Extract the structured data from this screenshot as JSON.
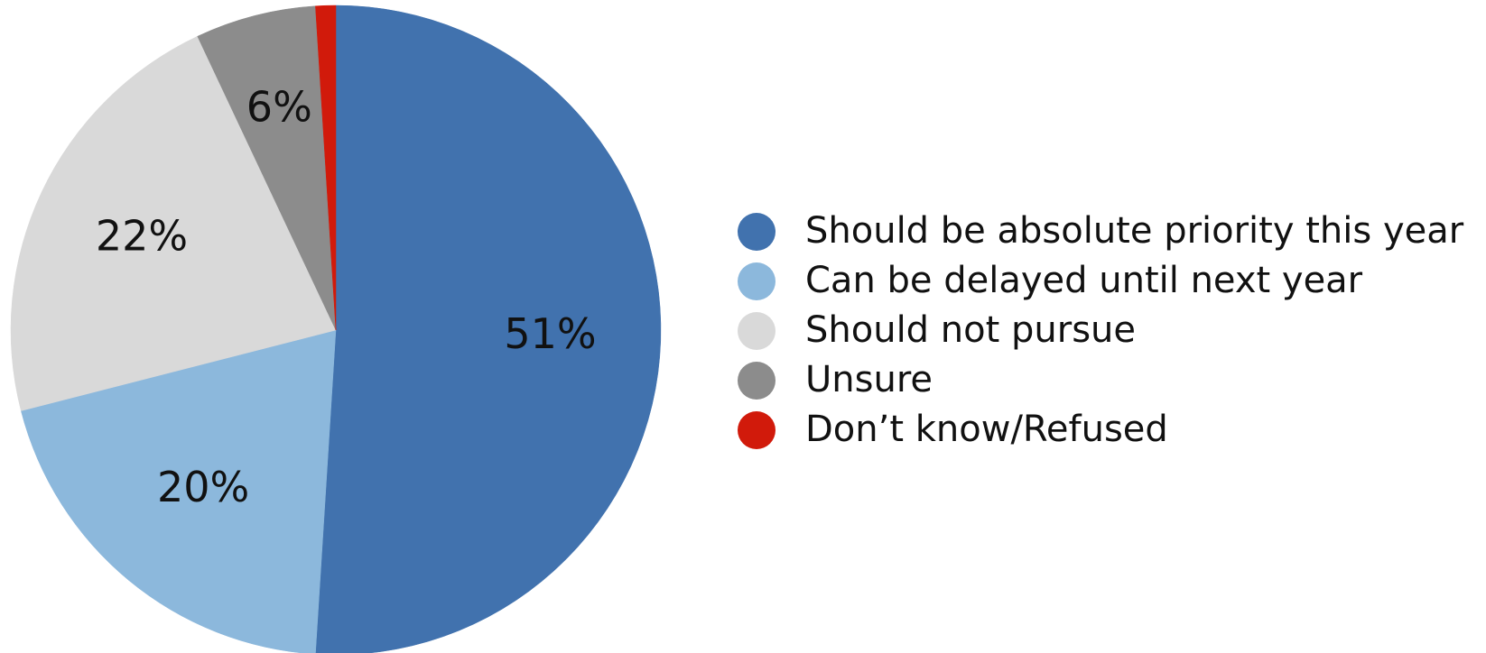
{
  "chart_data": {
    "type": "pie",
    "slices": [
      {
        "label": "Should be absolute priority this year",
        "value": 51,
        "value_label": "51%",
        "color": "#4172AE"
      },
      {
        "label": "Can be delayed until next year",
        "value": 20,
        "value_label": "20%",
        "color": "#8CB8DC"
      },
      {
        "label": "Should not pursue",
        "value": 22,
        "value_label": "22%",
        "color": "#D9D9D9"
      },
      {
        "label": "Unsure",
        "value": 6,
        "value_label": "6%",
        "color": "#8C8C8C"
      },
      {
        "label": "Don’t know/Refused",
        "value": 1,
        "value_label": "",
        "color": "#D11A0B"
      }
    ],
    "start_direction": "12 o'clock",
    "direction": "clockwise",
    "legend_position": "right"
  }
}
